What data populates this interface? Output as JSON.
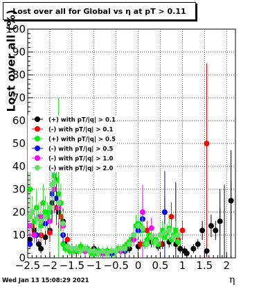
{
  "title": "Lost over all for Global vs  η at pT > 0.11",
  "footer": "Wed Jan 13 15:08:29 2021",
  "chart_data": {
    "type": "scatter",
    "title": "Lost over all for Global vs  η at pT > 0.11",
    "xlabel": "η",
    "ylabel": "Lost over all (%)",
    "xlim": [
      -2.5,
      2.2
    ],
    "ylim": [
      0,
      100
    ],
    "x_ticks": [
      -2.5,
      -2,
      -1.5,
      -1,
      -0.5,
      0,
      0.5,
      1,
      1.5,
      2
    ],
    "x_tick_labels": [
      "−2.5",
      "−2",
      "−1.5",
      "−1",
      "−0.5",
      "0",
      "0.5",
      "1",
      "1.5",
      "2"
    ],
    "y_ticks": [
      0,
      10,
      20,
      30,
      40,
      50,
      60,
      70,
      80,
      90,
      100
    ],
    "y_tick_labels": [
      "0",
      "10",
      "20",
      "30",
      "40",
      "50",
      "60",
      "70",
      "80",
      "90",
      "100"
    ],
    "grid": true,
    "legend_position": "left-middle",
    "series": [
      {
        "name": "(+) with pT/|q| > 0.1",
        "color": "#000000",
        "points": [
          [
            -2.45,
            8
          ],
          [
            -2.35,
            12
          ],
          [
            -2.25,
            6
          ],
          [
            -2.2,
            4
          ],
          [
            -2.1,
            9
          ],
          [
            -2.0,
            12
          ],
          [
            -1.95,
            24
          ],
          [
            -1.9,
            30
          ],
          [
            -1.85,
            26
          ],
          [
            -1.8,
            20
          ],
          [
            -1.75,
            18
          ],
          [
            -1.7,
            16
          ],
          [
            -1.65,
            6
          ],
          [
            -1.6,
            5
          ],
          [
            -1.5,
            4
          ],
          [
            -1.4,
            3
          ],
          [
            -1.3,
            5
          ],
          [
            -1.2,
            4
          ],
          [
            -1.1,
            3
          ],
          [
            -1.0,
            4
          ],
          [
            -0.9,
            3
          ],
          [
            -0.8,
            2
          ],
          [
            -0.7,
            3
          ],
          [
            -0.6,
            2
          ],
          [
            -0.4,
            3
          ],
          [
            -0.2,
            4
          ],
          [
            0.0,
            5
          ],
          [
            0.15,
            6
          ],
          [
            0.3,
            7
          ],
          [
            0.45,
            5
          ],
          [
            0.55,
            6
          ],
          [
            0.7,
            7
          ],
          [
            0.85,
            6
          ],
          [
            0.95,
            4
          ],
          [
            1.05,
            3
          ],
          [
            1.1,
            2
          ],
          [
            1.25,
            4
          ],
          [
            1.35,
            6
          ],
          [
            1.45,
            12
          ],
          [
            1.55,
            3
          ],
          [
            1.65,
            14
          ],
          [
            1.75,
            12
          ],
          [
            1.85,
            16
          ],
          [
            2.1,
            25
          ]
        ]
      },
      {
        "name": "(-) with pT/|q| > 0.1",
        "color": "#ff0000",
        "points": [
          [
            -2.4,
            14
          ],
          [
            -2.2,
            10
          ],
          [
            -2.0,
            11
          ],
          [
            -1.85,
            22
          ],
          [
            -1.75,
            18
          ],
          [
            -1.6,
            8
          ],
          [
            -1.4,
            4
          ],
          [
            -1.2,
            3
          ],
          [
            -0.9,
            2
          ],
          [
            -0.6,
            2
          ],
          [
            -0.3,
            3
          ],
          [
            0.05,
            6
          ],
          [
            0.2,
            12
          ],
          [
            0.35,
            8
          ],
          [
            0.5,
            6
          ],
          [
            0.75,
            18
          ],
          [
            0.9,
            8
          ],
          [
            1.0,
            12
          ],
          [
            1.55,
            50
          ]
        ]
      },
      {
        "name": "(+) with pT/|q| > 0.5",
        "color": "#00ee00",
        "points": [
          [
            -2.45,
            30
          ],
          [
            -2.4,
            20
          ],
          [
            -2.35,
            16
          ],
          [
            -2.3,
            22
          ],
          [
            -2.25,
            18
          ],
          [
            -2.2,
            14
          ],
          [
            -2.15,
            24
          ],
          [
            -2.1,
            20
          ],
          [
            -2.05,
            18
          ],
          [
            -2.0,
            20
          ],
          [
            -1.95,
            32
          ],
          [
            -1.9,
            36
          ],
          [
            -1.85,
            34
          ],
          [
            -1.8,
            28
          ],
          [
            -1.75,
            24
          ],
          [
            -1.7,
            6
          ],
          [
            -1.65,
            4
          ],
          [
            -1.6,
            5
          ],
          [
            -1.55,
            3
          ],
          [
            -1.5,
            4
          ],
          [
            -1.45,
            3
          ],
          [
            -1.4,
            4
          ],
          [
            -1.35,
            3
          ],
          [
            -1.3,
            5
          ],
          [
            -1.25,
            4
          ],
          [
            -1.2,
            3
          ],
          [
            -1.15,
            4
          ],
          [
            -1.1,
            3
          ],
          [
            -1.05,
            2
          ],
          [
            -1.0,
            3
          ],
          [
            -0.95,
            2
          ],
          [
            -0.9,
            3
          ],
          [
            -0.85,
            2
          ],
          [
            -0.8,
            3
          ],
          [
            -0.75,
            2
          ],
          [
            -0.7,
            3
          ],
          [
            -0.65,
            2
          ],
          [
            -0.6,
            3
          ],
          [
            -0.55,
            2
          ],
          [
            -0.5,
            3
          ],
          [
            -0.45,
            4
          ],
          [
            -0.4,
            3
          ],
          [
            -0.35,
            4
          ],
          [
            -0.3,
            5
          ],
          [
            -0.25,
            6
          ],
          [
            -0.2,
            7
          ],
          [
            -0.15,
            8
          ],
          [
            -0.1,
            10
          ],
          [
            -0.05,
            14
          ],
          [
            0.0,
            15
          ],
          [
            0.05,
            14
          ],
          [
            0.1,
            12
          ],
          [
            0.15,
            6
          ],
          [
            0.2,
            8
          ],
          [
            0.25,
            10
          ],
          [
            0.3,
            9
          ],
          [
            0.35,
            7
          ],
          [
            0.4,
            8
          ],
          [
            0.45,
            6
          ],
          [
            0.5,
            10
          ],
          [
            0.55,
            12
          ],
          [
            0.6,
            9
          ],
          [
            0.65,
            11
          ],
          [
            0.7,
            13
          ],
          [
            0.75,
            8
          ],
          [
            0.8,
            10
          ],
          [
            0.85,
            12
          ],
          [
            0.9,
            7
          ]
        ]
      },
      {
        "name": "(-) with pT/|q| > 0.5",
        "color": "#0000ff",
        "points": [
          [
            -2.45,
            6
          ],
          [
            -2.3,
            10
          ],
          [
            -2.1,
            15
          ],
          [
            -1.95,
            28
          ],
          [
            -1.85,
            26
          ],
          [
            -1.7,
            10
          ],
          [
            -1.5,
            4
          ],
          [
            -1.2,
            3
          ],
          [
            -0.9,
            2
          ],
          [
            -0.6,
            2
          ],
          [
            -0.3,
            3
          ],
          [
            0.0,
            12
          ],
          [
            0.1,
            17
          ],
          [
            0.6,
            20
          ]
        ]
      },
      {
        "name": "(-) with pT/|q| > 1.0",
        "color": "#ff00ff",
        "points": [
          [
            -2.45,
            14
          ],
          [
            -2.35,
            10
          ],
          [
            -2.2,
            18
          ],
          [
            -2.0,
            16
          ],
          [
            -1.9,
            30
          ],
          [
            -1.8,
            22
          ],
          [
            -1.7,
            14
          ],
          [
            -1.5,
            4
          ],
          [
            -1.2,
            3
          ],
          [
            -0.8,
            2
          ],
          [
            -0.4,
            3
          ],
          [
            -0.1,
            8
          ],
          [
            0.1,
            20
          ],
          [
            0.3,
            13
          ]
        ]
      },
      {
        "name": "(-) with pT/|q| > 2.0",
        "color": "#66dd66",
        "points": [
          [
            -2.45,
            18
          ],
          [
            -2.4,
            20
          ],
          [
            -2.3,
            17
          ],
          [
            -2.2,
            16
          ],
          [
            -2.1,
            18
          ],
          [
            -2.0,
            22
          ],
          [
            -1.95,
            32
          ],
          [
            -1.9,
            33
          ],
          [
            -1.8,
            24
          ],
          [
            -1.7,
            15
          ],
          [
            -1.6,
            5
          ],
          [
            -1.5,
            4
          ],
          [
            -1.4,
            4
          ],
          [
            -1.3,
            3
          ],
          [
            -1.2,
            4
          ],
          [
            -1.1,
            3
          ],
          [
            -1.0,
            3
          ],
          [
            -0.9,
            2
          ],
          [
            -0.8,
            3
          ],
          [
            -0.7,
            2
          ],
          [
            -0.6,
            3
          ],
          [
            -0.5,
            3
          ],
          [
            -0.4,
            4
          ],
          [
            -0.3,
            4
          ],
          [
            -0.2,
            6
          ],
          [
            -0.1,
            10
          ],
          [
            0.0,
            14
          ],
          [
            0.1,
            13
          ],
          [
            0.2,
            6
          ],
          [
            0.3,
            9
          ],
          [
            0.4,
            7
          ],
          [
            0.5,
            10
          ],
          [
            0.6,
            11
          ],
          [
            0.7,
            12
          ],
          [
            0.8,
            9
          ],
          [
            0.9,
            10
          ]
        ]
      }
    ],
    "spikes": [
      {
        "x": 1.55,
        "top": 85,
        "color": "#ff0000"
      },
      {
        "x": 0.6,
        "top": 38,
        "color": "#0000ff"
      },
      {
        "x": 0.1,
        "top": 32,
        "color": "#ff00ff"
      },
      {
        "x": -1.8,
        "top": 70,
        "color": "#00ee00"
      },
      {
        "x": 2.1,
        "top": 47,
        "color": "#000000"
      },
      {
        "x": 1.95,
        "top": 32,
        "color": "#000000"
      },
      {
        "x": 1.85,
        "top": 30,
        "color": "#000000"
      },
      {
        "x": 0.85,
        "top": 33,
        "color": "#000000"
      }
    ]
  }
}
